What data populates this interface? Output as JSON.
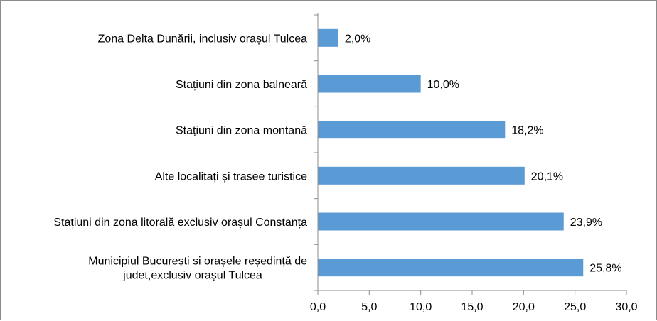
{
  "chart_data": {
    "type": "bar",
    "orientation": "horizontal",
    "categories": [
      [
        "Zona Delta Dunării, inclusiv orașul Tulcea"
      ],
      [
        "Stațiuni din zona balneară"
      ],
      [
        "Stațiuni din zona montană"
      ],
      [
        "Alte localitați și trasee turistice"
      ],
      [
        "Stațiuni din zona litorală exclusiv orașul Constanța"
      ],
      [
        "Municipiul București si orașele reședință de",
        "judet,exclusiv orașul Tulcea"
      ]
    ],
    "values": [
      2.0,
      10.0,
      18.2,
      20.1,
      23.9,
      25.8
    ],
    "value_labels": [
      "2,0%",
      "10,0%",
      "18,2%",
      "20,1%",
      "23,9%",
      "25,8%"
    ],
    "xlim": [
      0,
      30
    ],
    "x_ticks": [
      0,
      5,
      10,
      15,
      20,
      25,
      30
    ],
    "x_tick_labels": [
      "0,0",
      "5,0",
      "10,0",
      "15,0",
      "20,0",
      "25,0",
      "30,0"
    ],
    "title": "",
    "xlabel": "",
    "ylabel": "",
    "grid": false,
    "legend": "none",
    "bar_color": "#5b9bd5",
    "axis_color": "#8c8c8c"
  }
}
